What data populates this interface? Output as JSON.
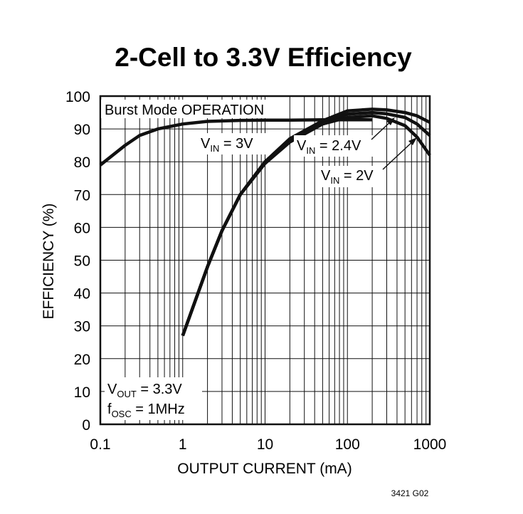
{
  "chart_data": {
    "type": "line",
    "title": "2-Cell to 3.3V Efficiency",
    "xlabel": "OUTPUT CURRENT (mA)",
    "ylabel": "EFFICIENCY (%)",
    "x_scale": "log",
    "xlim": [
      0.1,
      1000
    ],
    "ylim": [
      0,
      100
    ],
    "x_ticks": [
      "0.1",
      "1",
      "10",
      "100",
      "1000"
    ],
    "y_ticks": [
      "0",
      "10",
      "20",
      "30",
      "40",
      "50",
      "60",
      "70",
      "80",
      "90",
      "100"
    ],
    "grid": true,
    "series": [
      {
        "x": [
          0.1,
          0.2,
          0.3,
          0.5,
          1,
          2,
          5,
          10,
          20,
          50,
          100,
          200
        ],
        "y": [
          79,
          85,
          88,
          90,
          91.5,
          92.3,
          92.6,
          92.7,
          92.7,
          92.8,
          92.8,
          92.8
        ]
      },
      {
        "x": [
          1,
          2,
          3,
          5,
          10,
          20,
          50,
          100,
          200,
          300,
          500,
          700,
          1000
        ],
        "y": [
          27,
          48,
          59,
          70,
          80,
          87,
          92.5,
          95.5,
          96,
          95.8,
          95,
          94,
          92
        ]
      },
      {
        "x": [
          1,
          2,
          3,
          5,
          10,
          20,
          50,
          100,
          200,
          300,
          500,
          700,
          1000
        ],
        "y": [
          27,
          48,
          59,
          70,
          80,
          86.5,
          92,
          94.5,
          95,
          94.6,
          93.5,
          91.5,
          88
        ]
      },
      {
        "x": [
          1,
          2,
          3,
          5,
          10,
          20,
          50,
          100,
          200,
          300,
          500,
          700,
          1000
        ],
        "y": [
          27,
          48,
          59,
          70,
          79.5,
          86,
          91.5,
          93.5,
          94,
          93.2,
          91,
          87.5,
          82
        ]
      }
    ],
    "annotations": [
      {
        "text": "Burst Mode OPERATION"
      },
      {
        "main": "V",
        "sub": "IN",
        "rest": " = 3V"
      },
      {
        "main": "V",
        "sub": "IN",
        "rest": " = 2.4V"
      },
      {
        "main": "V",
        "sub": "IN",
        "rest": " = 2V"
      },
      {
        "main": "V",
        "sub": "OUT",
        "rest": " = 3.3V"
      },
      {
        "main": "f",
        "sub": "OSC",
        "rest": " = 1MHz"
      }
    ],
    "figure_code": "3421 G02"
  }
}
